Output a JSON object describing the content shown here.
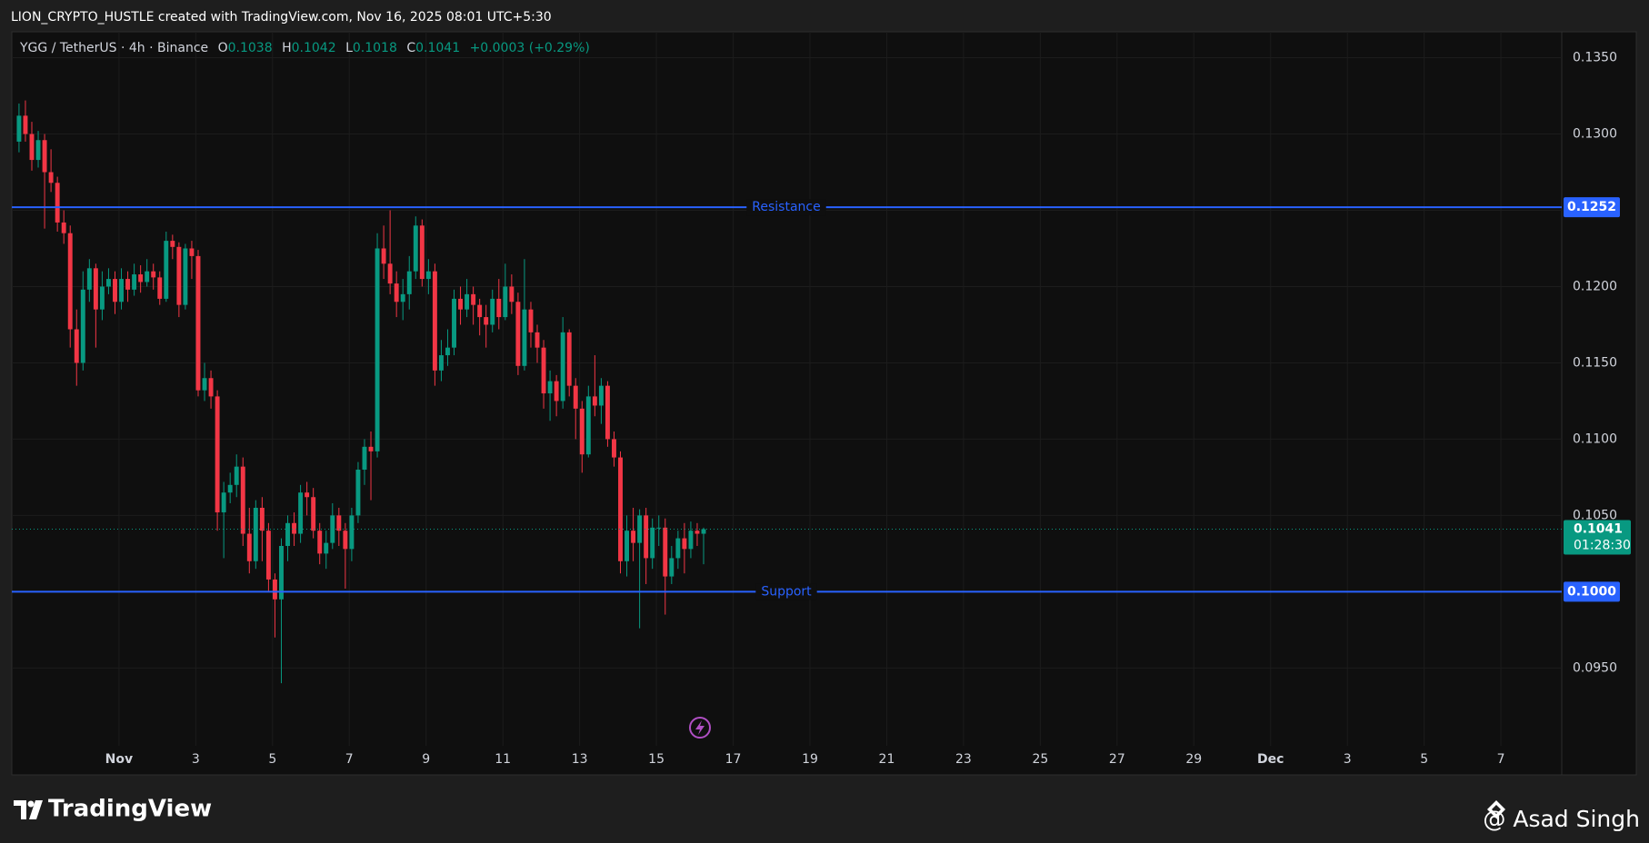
{
  "header": "LION_CRYPTO_HUSTLE created with TradingView.com, Nov 16, 2025 08:01 UTC+5:30",
  "footer": {
    "brand": "TradingView",
    "author": "@ Asad Singh"
  },
  "chart_data": {
    "type": "candlestick",
    "title": "YGG / TetherUS · 4h · Binance",
    "ohlc_labels": [
      "O",
      "H",
      "L",
      "C"
    ],
    "change_label": "+0.0003 (+0.29%)",
    "countdown": "01:28:30",
    "up_color": "#089981",
    "down_color": "#f23645",
    "x": [
      "2025-10-29 09:30",
      "2025-10-29 13:30",
      "2025-10-29 17:30",
      "2025-10-29 21:30",
      "2025-10-30 01:30",
      "2025-10-30 05:30",
      "2025-10-30 09:30",
      "2025-10-30 13:30",
      "2025-10-30 17:30",
      "2025-10-30 21:30",
      "2025-10-31 01:30",
      "2025-10-31 05:30",
      "2025-10-31 09:30",
      "2025-10-31 13:30",
      "2025-10-31 17:30",
      "2025-10-31 21:30",
      "2025-11-01 01:30",
      "2025-11-01 05:30",
      "2025-11-01 09:30",
      "2025-11-01 13:30",
      "2025-11-01 17:30",
      "2025-11-01 21:30",
      "2025-11-02 01:30",
      "2025-11-02 05:30",
      "2025-11-02 09:30",
      "2025-11-02 13:30",
      "2025-11-02 17:30",
      "2025-11-02 21:30",
      "2025-11-03 01:30",
      "2025-11-03 05:30",
      "2025-11-03 09:30",
      "2025-11-03 13:30",
      "2025-11-03 17:30",
      "2025-11-03 21:30",
      "2025-11-04 01:30",
      "2025-11-04 05:30",
      "2025-11-04 09:30",
      "2025-11-04 13:30",
      "2025-11-04 17:30",
      "2025-11-04 21:30",
      "2025-11-05 01:30",
      "2025-11-05 05:30",
      "2025-11-05 09:30",
      "2025-11-05 13:30",
      "2025-11-05 17:30",
      "2025-11-05 21:30",
      "2025-11-06 01:30",
      "2025-11-06 05:30",
      "2025-11-06 09:30",
      "2025-11-06 13:30",
      "2025-11-06 17:30",
      "2025-11-06 21:30",
      "2025-11-07 01:30",
      "2025-11-07 05:30",
      "2025-11-07 09:30",
      "2025-11-07 13:30",
      "2025-11-07 17:30",
      "2025-11-07 21:30",
      "2025-11-08 01:30",
      "2025-11-08 05:30",
      "2025-11-08 09:30",
      "2025-11-08 13:30",
      "2025-11-08 17:30",
      "2025-11-08 21:30",
      "2025-11-09 01:30",
      "2025-11-09 05:30",
      "2025-11-09 09:30",
      "2025-11-09 13:30",
      "2025-11-09 17:30",
      "2025-11-09 21:30",
      "2025-11-10 01:30",
      "2025-11-10 05:30",
      "2025-11-10 09:30",
      "2025-11-10 13:30",
      "2025-11-10 17:30",
      "2025-11-10 21:30",
      "2025-11-11 01:30",
      "2025-11-11 05:30",
      "2025-11-11 09:30",
      "2025-11-11 13:30",
      "2025-11-11 17:30",
      "2025-11-11 21:30",
      "2025-11-12 01:30",
      "2025-11-12 05:30",
      "2025-11-12 09:30",
      "2025-11-12 13:30",
      "2025-11-12 17:30",
      "2025-11-12 21:30",
      "2025-11-13 01:30",
      "2025-11-13 05:30",
      "2025-11-13 09:30",
      "2025-11-13 13:30",
      "2025-11-13 17:30",
      "2025-11-13 21:30",
      "2025-11-14 01:30",
      "2025-11-14 05:30",
      "2025-11-14 09:30",
      "2025-11-14 13:30",
      "2025-11-14 17:30",
      "2025-11-14 21:30",
      "2025-11-15 01:30",
      "2025-11-15 05:30",
      "2025-11-15 09:30",
      "2025-11-15 13:30",
      "2025-11-15 17:30",
      "2025-11-15 21:30",
      "2025-11-16 01:30",
      "2025-11-16 05:30"
    ],
    "open": [
      0.1295,
      0.1312,
      0.13,
      0.1283,
      0.1296,
      0.1275,
      0.1268,
      0.1242,
      0.1235,
      0.1172,
      0.115,
      0.1198,
      0.1212,
      0.1185,
      0.12,
      0.1205,
      0.119,
      0.1205,
      0.1198,
      0.1208,
      0.1203,
      0.121,
      0.1206,
      0.1192,
      0.123,
      0.1226,
      0.1188,
      0.1225,
      0.122,
      0.1132,
      0.114,
      0.1128,
      0.1052,
      0.1065,
      0.107,
      0.1082,
      0.1038,
      0.102,
      0.1055,
      0.104,
      0.1008,
      0.0995,
      0.103,
      0.1045,
      0.1038,
      0.1065,
      0.1062,
      0.104,
      0.1025,
      0.1032,
      0.105,
      0.104,
      0.1028,
      0.105,
      0.108,
      0.1095,
      0.1092,
      0.1225,
      0.1215,
      0.1202,
      0.119,
      0.1195,
      0.121,
      0.124,
      0.1205,
      0.121,
      0.1145,
      0.1155,
      0.116,
      0.1192,
      0.1185,
      0.1195,
      0.1188,
      0.118,
      0.1175,
      0.1192,
      0.118,
      0.12,
      0.119,
      0.1148,
      0.1185,
      0.117,
      0.116,
      0.113,
      0.1138,
      0.1125,
      0.117,
      0.1135,
      0.112,
      0.109,
      0.1128,
      0.1122,
      0.1135,
      0.11,
      0.1088,
      0.102,
      0.104,
      0.1032,
      0.105,
      0.1022,
      0.1042,
      0.1042,
      0.101,
      0.1022,
      0.1035,
      0.1028,
      0.104,
      0.1038
    ],
    "high": [
      0.132,
      0.1322,
      0.1308,
      0.1302,
      0.13,
      0.129,
      0.1272,
      0.125,
      0.124,
      0.1185,
      0.121,
      0.1218,
      0.1215,
      0.121,
      0.1212,
      0.121,
      0.1212,
      0.121,
      0.1215,
      0.1214,
      0.1218,
      0.1215,
      0.121,
      0.1236,
      0.1234,
      0.1229,
      0.1228,
      0.123,
      0.1224,
      0.115,
      0.1145,
      0.1132,
      0.1072,
      0.1078,
      0.109,
      0.1088,
      0.1055,
      0.106,
      0.1062,
      0.1045,
      0.1012,
      0.1035,
      0.105,
      0.1052,
      0.107,
      0.1072,
      0.1068,
      0.1045,
      0.104,
      0.1058,
      0.1055,
      0.1045,
      0.1055,
      0.1085,
      0.11,
      0.1105,
      0.1235,
      0.124,
      0.125,
      0.121,
      0.1205,
      0.122,
      0.1246,
      0.1244,
      0.1218,
      0.1215,
      0.1165,
      0.1172,
      0.1198,
      0.12,
      0.1205,
      0.12,
      0.1192,
      0.1188,
      0.1198,
      0.1205,
      0.1215,
      0.1208,
      0.1196,
      0.1218,
      0.119,
      0.1175,
      0.1165,
      0.1145,
      0.1142,
      0.118,
      0.1172,
      0.114,
      0.1125,
      0.1135,
      0.1155,
      0.114,
      0.1138,
      0.1105,
      0.1092,
      0.105,
      0.1055,
      0.1054,
      0.1055,
      0.1048,
      0.105,
      0.1048,
      0.103,
      0.104,
      0.1045,
      0.1046,
      0.1045,
      0.1042
    ],
    "low": [
      0.1288,
      0.1295,
      0.1276,
      0.1278,
      0.1238,
      0.1262,
      0.1236,
      0.1228,
      0.116,
      0.1135,
      0.1145,
      0.119,
      0.116,
      0.1178,
      0.1195,
      0.1182,
      0.1185,
      0.119,
      0.1194,
      0.1196,
      0.12,
      0.1198,
      0.1188,
      0.119,
      0.1218,
      0.118,
      0.1185,
      0.1205,
      0.1128,
      0.1125,
      0.112,
      0.104,
      0.1022,
      0.1058,
      0.1062,
      0.103,
      0.1012,
      0.1015,
      0.102,
      0.1,
      0.097,
      0.094,
      0.102,
      0.103,
      0.1032,
      0.105,
      0.1035,
      0.1018,
      0.1015,
      0.1028,
      0.103,
      0.1002,
      0.102,
      0.1045,
      0.107,
      0.106,
      0.1088,
      0.1205,
      0.1195,
      0.118,
      0.1178,
      0.1185,
      0.1205,
      0.12,
      0.1195,
      0.1135,
      0.1138,
      0.1148,
      0.1155,
      0.1175,
      0.118,
      0.1175,
      0.1168,
      0.116,
      0.117,
      0.1172,
      0.1178,
      0.1182,
      0.1142,
      0.1145,
      0.116,
      0.115,
      0.112,
      0.1112,
      0.1115,
      0.112,
      0.1128,
      0.11,
      0.1078,
      0.1088,
      0.1115,
      0.111,
      0.1095,
      0.1082,
      0.1012,
      0.101,
      0.102,
      0.0976,
      0.1005,
      0.1015,
      0.103,
      0.0985,
      0.1005,
      0.1015,
      0.1012,
      0.1022,
      0.103,
      0.1018
    ],
    "close": [
      0.1312,
      0.13,
      0.1283,
      0.1296,
      0.1275,
      0.1268,
      0.1242,
      0.1235,
      0.1172,
      0.115,
      0.1198,
      0.1212,
      0.1185,
      0.12,
      0.1205,
      0.119,
      0.1205,
      0.1198,
      0.1208,
      0.1203,
      0.121,
      0.1206,
      0.1192,
      0.123,
      0.1226,
      0.1188,
      0.1225,
      0.122,
      0.1132,
      0.114,
      0.1128,
      0.1052,
      0.1065,
      0.107,
      0.1082,
      0.1038,
      0.102,
      0.1055,
      0.104,
      0.1008,
      0.0995,
      0.103,
      0.1045,
      0.1038,
      0.1065,
      0.1062,
      0.104,
      0.1025,
      0.1032,
      0.105,
      0.104,
      0.1028,
      0.105,
      0.108,
      0.1095,
      0.1092,
      0.1225,
      0.1215,
      0.1202,
      0.119,
      0.1195,
      0.121,
      0.124,
      0.1205,
      0.121,
      0.1145,
      0.1155,
      0.116,
      0.1192,
      0.1185,
      0.1195,
      0.1188,
      0.118,
      0.1175,
      0.1192,
      0.118,
      0.12,
      0.119,
      0.1148,
      0.1185,
      0.117,
      0.116,
      0.113,
      0.1138,
      0.1125,
      0.117,
      0.1135,
      0.112,
      0.109,
      0.1128,
      0.1122,
      0.1135,
      0.11,
      0.1088,
      0.102,
      0.104,
      0.1032,
      0.105,
      0.1022,
      0.1042,
      0.1042,
      0.101,
      0.1022,
      0.1035,
      0.1028,
      0.104,
      0.1038,
      0.1041
    ],
    "xlim": [
      "2025-10-29 05:00",
      "2025-12-08 14:00"
    ],
    "xticks": [
      {
        "value": "2025-11-01",
        "label": "Nov"
      },
      {
        "value": "2025-11-03",
        "label": "3"
      },
      {
        "value": "2025-11-05",
        "label": "5"
      },
      {
        "value": "2025-11-07",
        "label": "7"
      },
      {
        "value": "2025-11-09",
        "label": "9"
      },
      {
        "value": "2025-11-11",
        "label": "11"
      },
      {
        "value": "2025-11-13",
        "label": "13"
      },
      {
        "value": "2025-11-15",
        "label": "15"
      },
      {
        "value": "2025-11-17",
        "label": "17"
      },
      {
        "value": "2025-11-19",
        "label": "19"
      },
      {
        "value": "2025-11-21",
        "label": "21"
      },
      {
        "value": "2025-11-23",
        "label": "23"
      },
      {
        "value": "2025-11-25",
        "label": "25"
      },
      {
        "value": "2025-11-27",
        "label": "27"
      },
      {
        "value": "2025-11-29",
        "label": "29"
      },
      {
        "value": "2025-12-01",
        "label": "Dec"
      },
      {
        "value": "2025-12-03",
        "label": "3"
      },
      {
        "value": "2025-12-05",
        "label": "5"
      },
      {
        "value": "2025-12-07",
        "label": "7"
      }
    ],
    "ylim": [
      0.0899,
      0.1367
    ],
    "yticks": [
      {
        "value": 0.095,
        "label": "0.0950"
      },
      {
        "value": 0.1,
        "label": "0.1000"
      },
      {
        "value": 0.105,
        "label": "0.1050"
      },
      {
        "value": 0.11,
        "label": "0.1100"
      },
      {
        "value": 0.115,
        "label": "0.1150"
      },
      {
        "value": 0.12,
        "label": "0.1200"
      },
      {
        "value": 0.125,
        "label": "0.1250"
      },
      {
        "value": 0.13,
        "label": "0.1300"
      },
      {
        "value": 0.135,
        "label": "0.1350"
      }
    ],
    "grid": true,
    "levels": [
      {
        "name": "Resistance",
        "value": 0.1252,
        "color": "#2962ff"
      },
      {
        "name": "Support",
        "value": 0.1,
        "label": "0.1000",
        "color": "#2962ff"
      }
    ]
  }
}
